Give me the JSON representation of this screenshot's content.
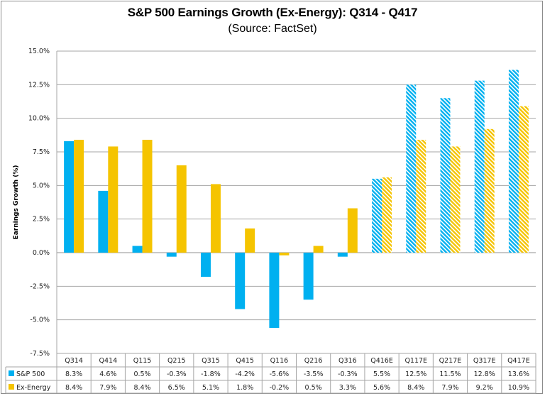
{
  "chart_data": {
    "type": "bar",
    "title": "S&P 500 Earnings Growth (Ex-Energy): Q314 - Q417",
    "subtitle": "(Source: FactSet)",
    "xlabel": "",
    "ylabel": "Earnings Growth (%)",
    "ylim": [
      -7.5,
      15.0
    ],
    "ytick_step": 2.5,
    "yticks": [
      "15.0%",
      "12.5%",
      "10.0%",
      "7.5%",
      "5.0%",
      "2.5%",
      "0.0%",
      "-2.5%",
      "-5.0%",
      "-7.5%"
    ],
    "grid": true,
    "legend_placement": "data-table-left",
    "categories": [
      "Q314",
      "Q414",
      "Q115",
      "Q215",
      "Q315",
      "Q415",
      "Q116",
      "Q216",
      "Q316",
      "Q416E",
      "Q117E",
      "Q217E",
      "Q317E",
      "Q417E"
    ],
    "estimate_categories_hatched": [
      "Q416E",
      "Q117E",
      "Q217E",
      "Q317E",
      "Q417E"
    ],
    "series": [
      {
        "name": "S&P 500",
        "color": "#00b0f0",
        "values": [
          8.3,
          4.6,
          0.5,
          -0.3,
          -1.8,
          -4.2,
          -5.6,
          -3.5,
          -0.3,
          5.5,
          12.5,
          11.5,
          12.8,
          13.6
        ],
        "labels": [
          "8.3%",
          "4.6%",
          "0.5%",
          "-0.3%",
          "-1.8%",
          "-4.2%",
          "-5.6%",
          "-3.5%",
          "-0.3%",
          "5.5%",
          "12.5%",
          "11.5%",
          "12.8%",
          "13.6%"
        ]
      },
      {
        "name": "Ex-Energy",
        "color": "#f5c400",
        "values": [
          8.4,
          7.9,
          8.4,
          6.5,
          5.1,
          1.8,
          -0.2,
          0.5,
          3.3,
          5.6,
          8.4,
          7.9,
          9.2,
          10.9
        ],
        "labels": [
          "8.4%",
          "7.9%",
          "8.4%",
          "6.5%",
          "5.1%",
          "1.8%",
          "-0.2%",
          "0.5%",
          "3.3%",
          "5.6%",
          "8.4%",
          "7.9%",
          "9.2%",
          "10.9%"
        ]
      }
    ]
  }
}
